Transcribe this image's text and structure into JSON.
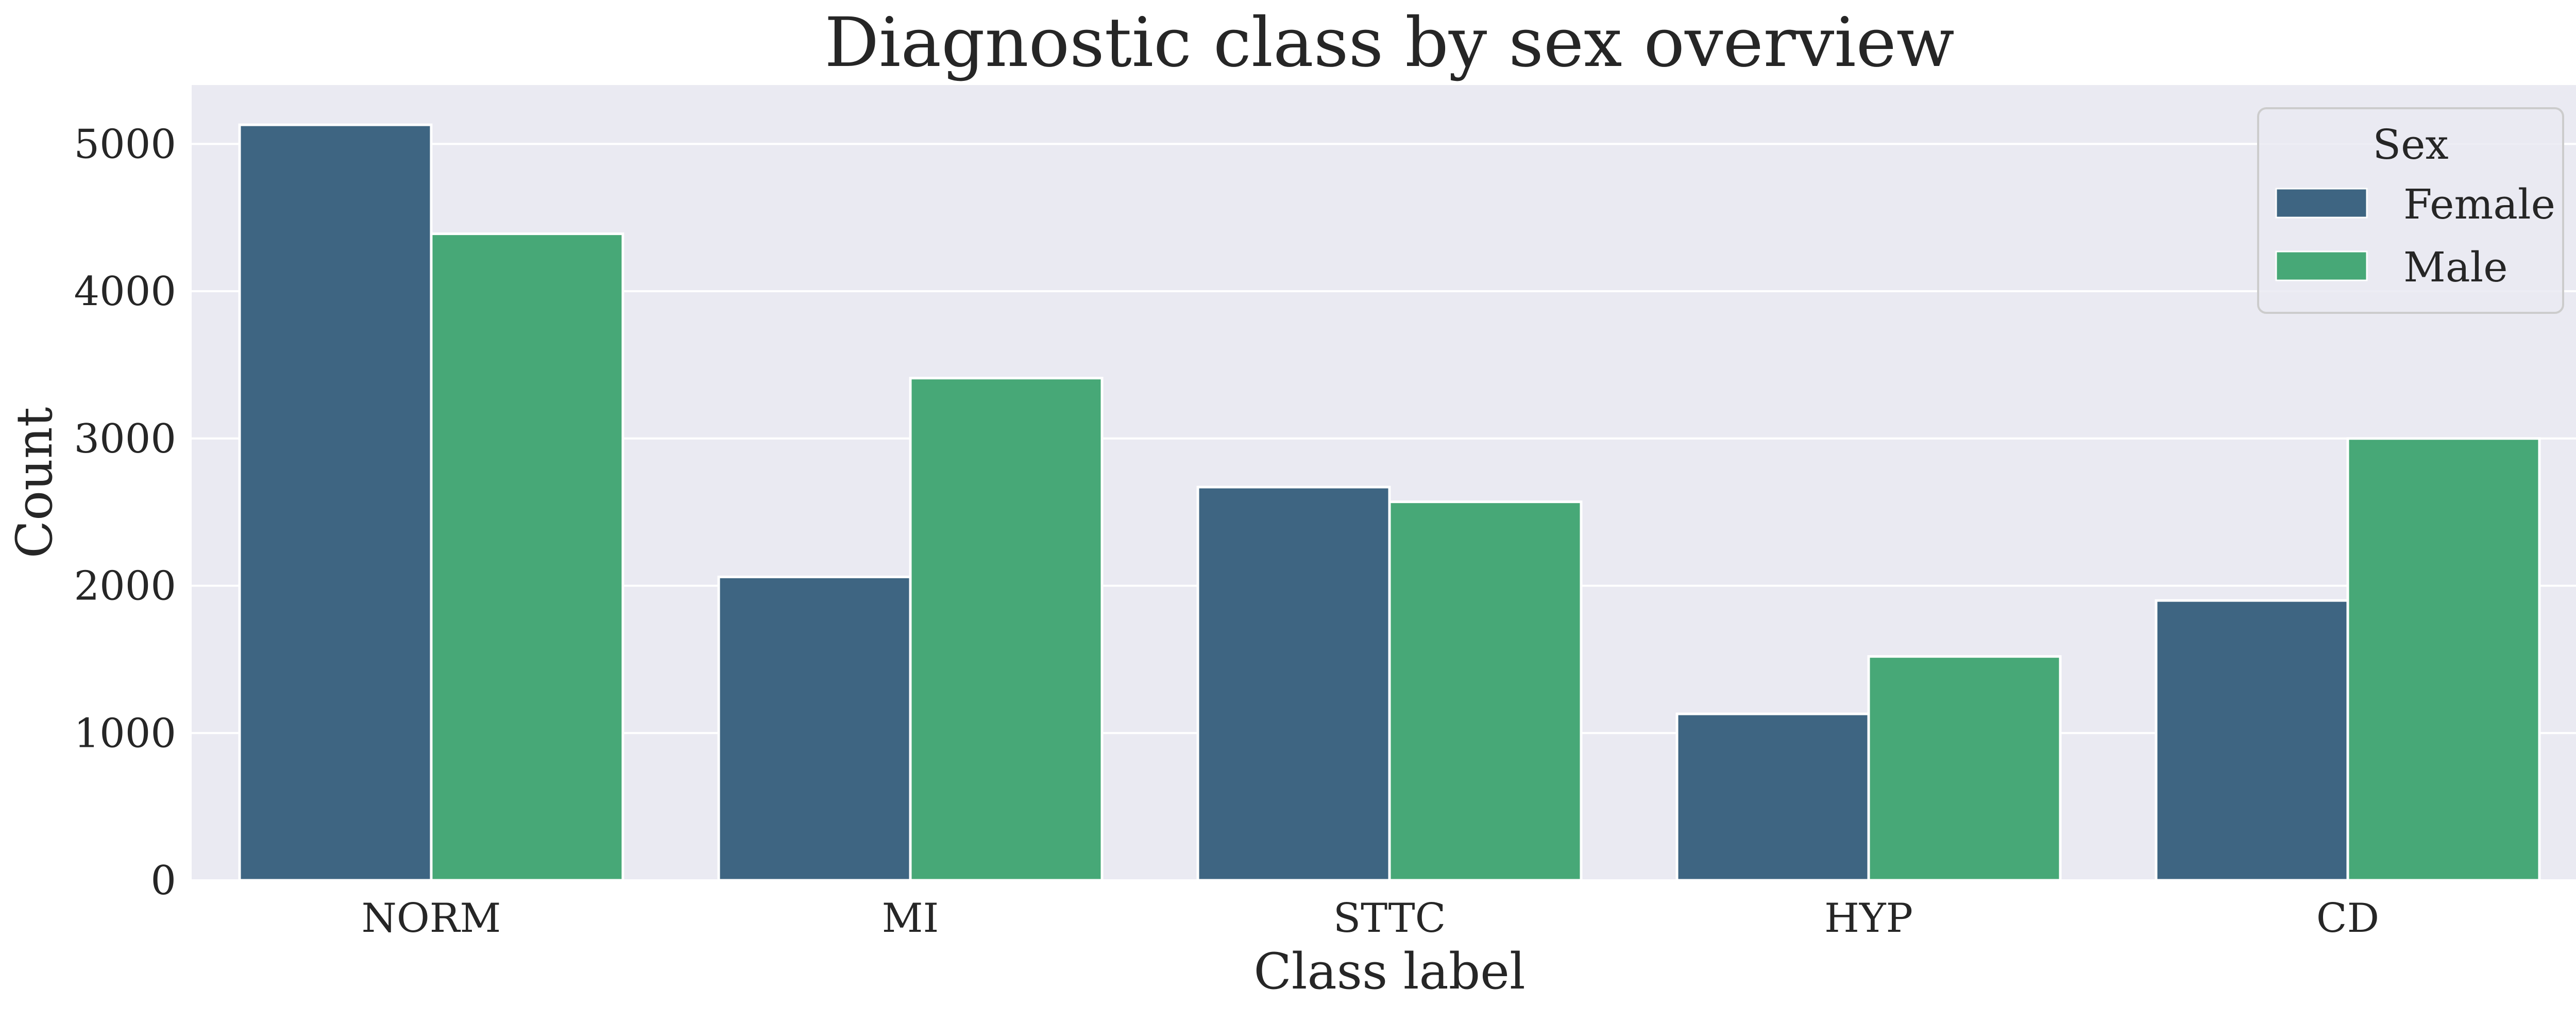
{
  "chart_data": {
    "type": "bar",
    "title": "Diagnostic class by sex overview",
    "xlabel": "Class label",
    "ylabel": "Count",
    "categories": [
      "NORM",
      "MI",
      "STTC",
      "HYP",
      "CD"
    ],
    "series": [
      {
        "name": "Female",
        "color": "#3e6582",
        "values": [
          5130,
          2060,
          2670,
          1130,
          1900
        ]
      },
      {
        "name": "Male",
        "color": "#47a877",
        "values": [
          4390,
          3410,
          2570,
          1520,
          3000
        ]
      }
    ],
    "ylim": [
      0,
      5400
    ],
    "yticks": [
      0,
      1000,
      2000,
      3000,
      4000,
      5000
    ],
    "grid": true,
    "legend": {
      "title": "Sex",
      "placement": "top-right"
    },
    "background_color": "#eaeaf2",
    "grid_color": "#ffffff"
  }
}
